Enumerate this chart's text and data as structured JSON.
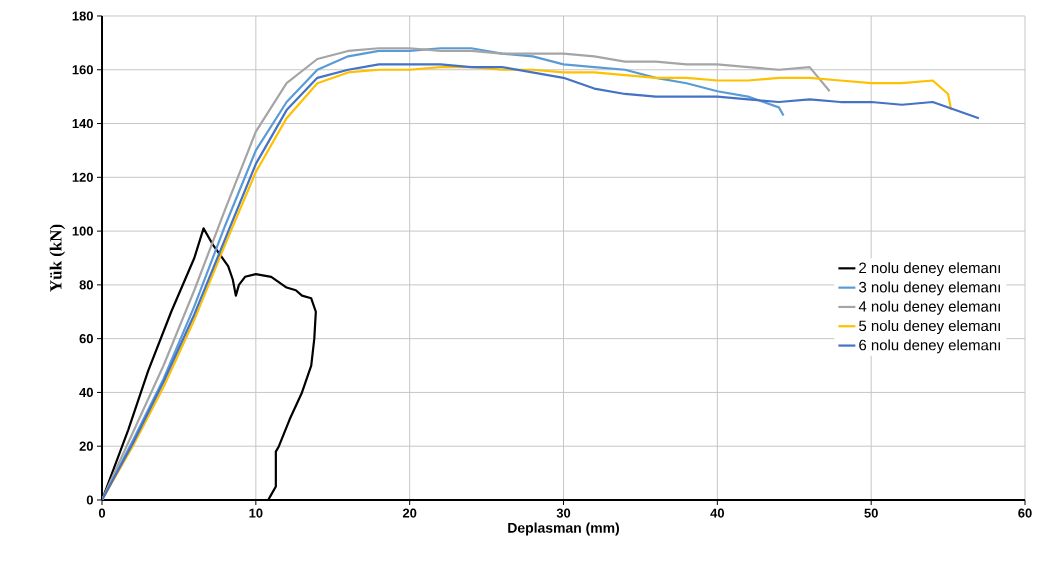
{
  "chart_data": {
    "type": "line",
    "xlabel": "Deplasman (mm)",
    "ylabel": "Yük (kN)",
    "xlim": [
      0,
      60
    ],
    "ylim": [
      0,
      180
    ],
    "xticks": [
      0,
      10,
      20,
      30,
      40,
      50,
      60
    ],
    "yticks": [
      0,
      20,
      40,
      60,
      80,
      100,
      120,
      140,
      160,
      180
    ],
    "grid": true,
    "legend": "right",
    "marker": "none",
    "line_style": "solid",
    "series": [
      {
        "name": "2 nolu deney elemanı",
        "color": "#000000",
        "x": [
          0,
          1.7,
          3,
          4.5,
          6,
          6.6,
          7.2,
          8.2,
          8.5,
          8.7,
          8.9,
          9.3,
          10,
          11,
          12,
          12.6,
          13,
          13.6,
          13.9,
          13.8,
          13.6,
          13,
          12.2,
          11.5,
          11.3,
          11.3,
          11,
          10.8
        ],
        "values": [
          0,
          26,
          48,
          70,
          90,
          101,
          95,
          87,
          82,
          76,
          80,
          83,
          84,
          83,
          79,
          78,
          76,
          75,
          70,
          60,
          50,
          40,
          30,
          20,
          18,
          5,
          2,
          0
        ]
      },
      {
        "name": "3 nolu deney elemanı",
        "color": "#5b9bd5",
        "x": [
          0,
          2,
          4,
          6,
          8,
          10,
          12,
          14,
          16,
          18,
          20,
          22,
          24,
          26,
          28,
          30,
          32,
          34,
          36,
          38,
          40,
          42,
          43,
          44,
          44.3
        ],
        "values": [
          0,
          22,
          45,
          72,
          102,
          130,
          148,
          160,
          165,
          167,
          167,
          168,
          168,
          166,
          165,
          162,
          161,
          160,
          157,
          155,
          152,
          150,
          148,
          146,
          143
        ]
      },
      {
        "name": "4 nolu deney elemanı",
        "color": "#a5a5a5",
        "x": [
          0,
          2,
          4,
          6,
          8,
          10,
          12,
          14,
          16,
          18,
          20,
          22,
          24,
          26,
          28,
          30,
          32,
          34,
          36,
          38,
          40,
          42,
          44,
          46,
          47.3
        ],
        "values": [
          0,
          25,
          50,
          78,
          108,
          137,
          155,
          164,
          167,
          168,
          168,
          167,
          167,
          166,
          166,
          166,
          165,
          163,
          163,
          162,
          162,
          161,
          160,
          161,
          152
        ]
      },
      {
        "name": "5 nolu deney elemanı",
        "color": "#ffc000",
        "x": [
          0,
          2,
          4,
          6,
          8,
          10,
          12,
          14,
          16,
          18,
          20,
          22,
          24,
          26,
          28,
          30,
          32,
          34,
          36,
          38,
          40,
          42,
          44,
          46,
          48,
          50,
          52,
          54,
          55,
          55.2
        ],
        "values": [
          0,
          20,
          42,
          67,
          95,
          122,
          142,
          155,
          159,
          160,
          160,
          161,
          161,
          160,
          160,
          159,
          159,
          158,
          157,
          157,
          156,
          156,
          157,
          157,
          156,
          155,
          155,
          156,
          151,
          145
        ]
      },
      {
        "name": "6 nolu deney elemanı",
        "color": "#4472c4",
        "x": [
          0,
          2,
          4,
          6,
          8,
          10,
          12,
          14,
          16,
          18,
          20,
          22,
          24,
          26,
          28,
          30,
          32,
          34,
          36,
          38,
          40,
          42,
          44,
          46,
          48,
          50,
          52,
          54,
          57
        ],
        "values": [
          0,
          21,
          44,
          69,
          97,
          125,
          145,
          157,
          160,
          162,
          162,
          162,
          161,
          161,
          159,
          157,
          153,
          151,
          150,
          150,
          150,
          149,
          148,
          149,
          148,
          148,
          147,
          148,
          142
        ]
      }
    ]
  }
}
